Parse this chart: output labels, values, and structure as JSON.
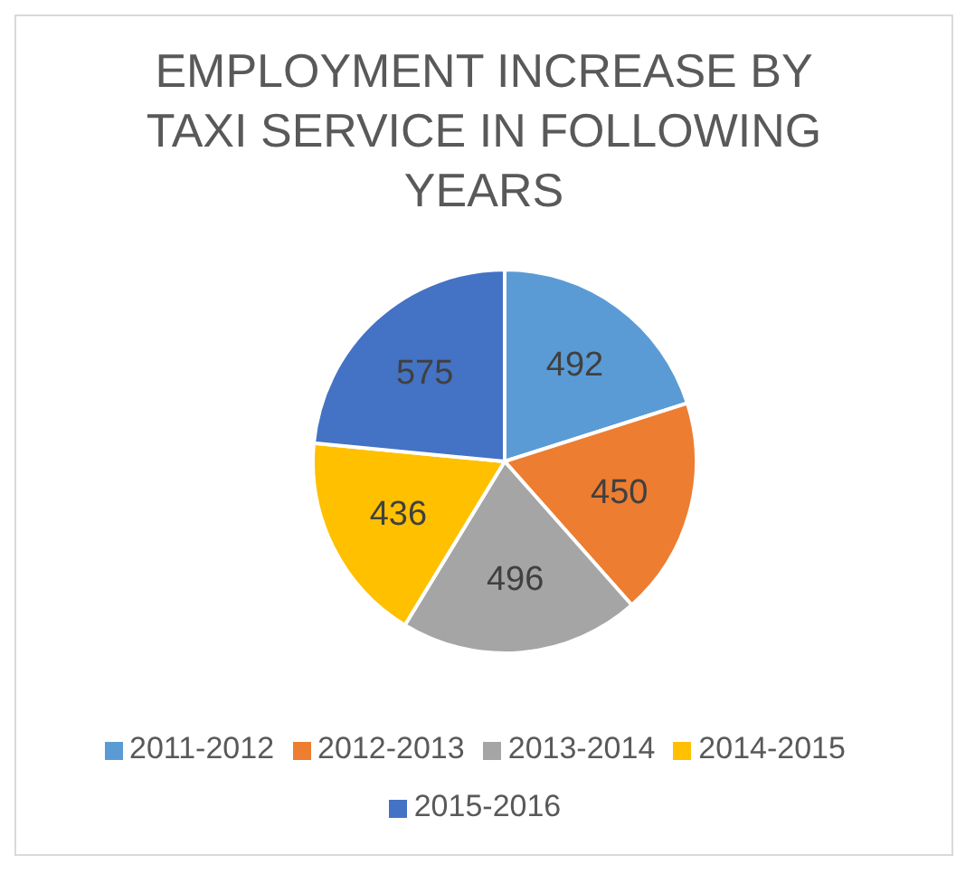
{
  "chart_data": {
    "type": "pie",
    "title": "EMPLOYMENT INCREASE BY TAXI SERVICE IN FOLLOWING YEARS",
    "categories": [
      "2011-2012",
      "2012-2013",
      "2013-2014",
      "2014-2015",
      "2015-2016"
    ],
    "values": [
      492,
      450,
      496,
      436,
      575
    ],
    "colors": [
      "#5b9bd5",
      "#ed7d31",
      "#a5a5a5",
      "#ffc000",
      "#4472c4"
    ],
    "data_labels": true,
    "legend": "bottom"
  }
}
